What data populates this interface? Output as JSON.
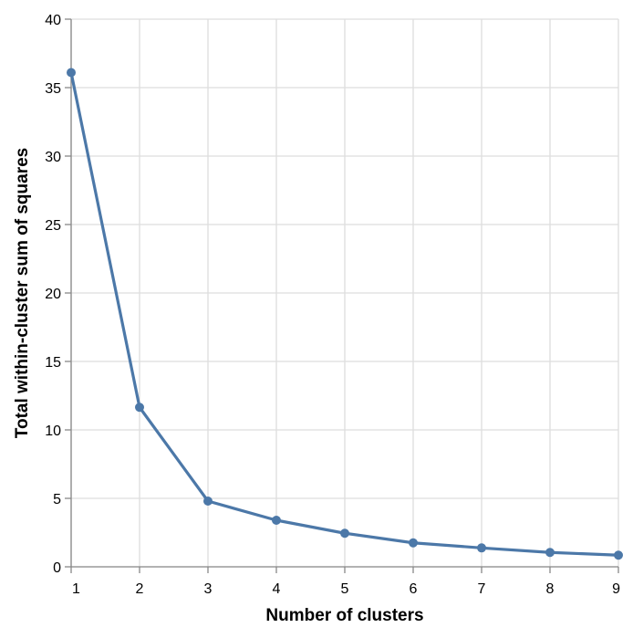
{
  "chart_data": {
    "type": "line",
    "title": "",
    "xlabel": "Number of clusters",
    "ylabel": "Total within-cluster sum of squares",
    "x": [
      1,
      2,
      3,
      4,
      5,
      6,
      7,
      8,
      9
    ],
    "series": [
      {
        "values": [
          36.1,
          11.65,
          4.8,
          3.4,
          2.45,
          1.75,
          1.38,
          1.05,
          0.85
        ]
      }
    ],
    "xlim": [
      1,
      9
    ],
    "ylim": [
      0,
      40
    ],
    "x_ticks": [
      1,
      2,
      3,
      4,
      5,
      6,
      7,
      8,
      9
    ],
    "y_ticks": [
      0,
      5,
      10,
      15,
      20,
      25,
      30,
      35,
      40
    ],
    "x_tick_labels": [
      "1",
      "2",
      "3",
      "4",
      "5",
      "6",
      "7",
      "8",
      "9"
    ],
    "y_tick_labels": [
      "0",
      "5",
      "10",
      "15",
      "20",
      "25",
      "30",
      "35",
      "40"
    ],
    "grid": true,
    "legend": "none",
    "colors": {
      "line": "#4c78a8",
      "grid": "#dddddd",
      "axis": "#888888"
    }
  }
}
